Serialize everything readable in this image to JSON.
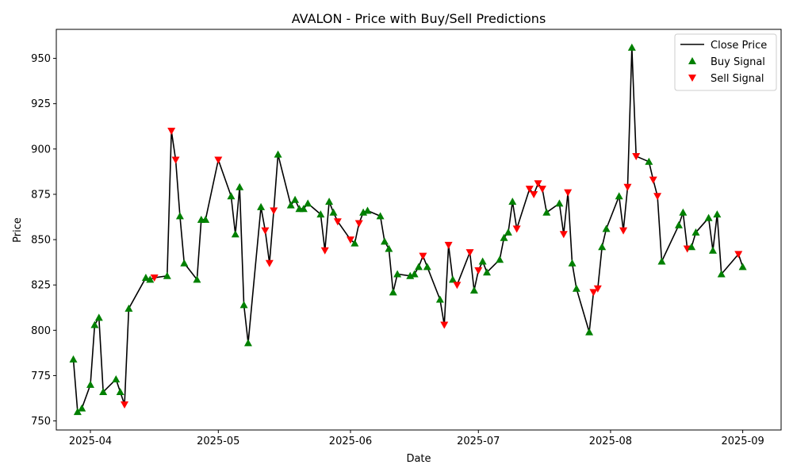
{
  "chart_data": {
    "type": "line",
    "title": "AVALON - Price with Buy/Sell Predictions",
    "xlabel": "Date",
    "ylabel": "Price",
    "xlim": [
      "2025-03-24",
      "2025-09-10"
    ],
    "ylim": [
      745,
      966
    ],
    "x_ticks": [
      "2025-04-01",
      "2025-05-01",
      "2025-06-01",
      "2025-07-01",
      "2025-08-01",
      "2025-09-01"
    ],
    "x_tick_labels": [
      "2025-04",
      "2025-05",
      "2025-06",
      "2025-07",
      "2025-08",
      "2025-09"
    ],
    "y_ticks": [
      750,
      775,
      800,
      825,
      850,
      875,
      900,
      925,
      950
    ],
    "grid": false,
    "legend": {
      "position": "top-right",
      "entries": [
        "Close Price",
        "Buy Signal",
        "Sell Signal"
      ]
    },
    "colors": {
      "line": "#000000",
      "buy": "#008000",
      "sell": "#ff0000"
    },
    "series": [
      {
        "name": "Close Price",
        "points": [
          {
            "x": "2025-03-28",
            "y": 784,
            "signal": "buy"
          },
          {
            "x": "2025-03-29",
            "y": 755,
            "signal": "buy"
          },
          {
            "x": "2025-03-30",
            "y": 757,
            "signal": "buy"
          },
          {
            "x": "2025-04-01",
            "y": 770,
            "signal": "buy"
          },
          {
            "x": "2025-04-02",
            "y": 803,
            "signal": "buy"
          },
          {
            "x": "2025-04-03",
            "y": 807,
            "signal": "buy"
          },
          {
            "x": "2025-04-04",
            "y": 766,
            "signal": "buy"
          },
          {
            "x": "2025-04-07",
            "y": 773,
            "signal": "buy"
          },
          {
            "x": "2025-04-08",
            "y": 766,
            "signal": "buy"
          },
          {
            "x": "2025-04-09",
            "y": 759,
            "signal": "sell"
          },
          {
            "x": "2025-04-10",
            "y": 812,
            "signal": "buy"
          },
          {
            "x": "2025-04-14",
            "y": 829,
            "signal": "buy"
          },
          {
            "x": "2025-04-15",
            "y": 828,
            "signal": "buy"
          },
          {
            "x": "2025-04-16",
            "y": 829,
            "signal": "sell"
          },
          {
            "x": "2025-04-19",
            "y": 830,
            "signal": "buy"
          },
          {
            "x": "2025-04-20",
            "y": 910,
            "signal": "sell"
          },
          {
            "x": "2025-04-21",
            "y": 894,
            "signal": "sell"
          },
          {
            "x": "2025-04-22",
            "y": 863,
            "signal": "buy"
          },
          {
            "x": "2025-04-23",
            "y": 837,
            "signal": "buy"
          },
          {
            "x": "2025-04-26",
            "y": 828,
            "signal": "buy"
          },
          {
            "x": "2025-04-27",
            "y": 861,
            "signal": "buy"
          },
          {
            "x": "2025-04-28",
            "y": 861,
            "signal": "buy"
          },
          {
            "x": "2025-05-01",
            "y": 894,
            "signal": "sell"
          },
          {
            "x": "2025-05-04",
            "y": 874,
            "signal": "buy"
          },
          {
            "x": "2025-05-05",
            "y": 853,
            "signal": "buy"
          },
          {
            "x": "2025-05-06",
            "y": 879,
            "signal": "buy"
          },
          {
            "x": "2025-05-07",
            "y": 814,
            "signal": "buy"
          },
          {
            "x": "2025-05-08",
            "y": 793,
            "signal": "buy"
          },
          {
            "x": "2025-05-11",
            "y": 868,
            "signal": "buy"
          },
          {
            "x": "2025-05-12",
            "y": 855,
            "signal": "sell"
          },
          {
            "x": "2025-05-13",
            "y": 837,
            "signal": "sell"
          },
          {
            "x": "2025-05-14",
            "y": 866,
            "signal": "sell"
          },
          {
            "x": "2025-05-15",
            "y": 897,
            "signal": "buy"
          },
          {
            "x": "2025-05-18",
            "y": 869,
            "signal": "buy"
          },
          {
            "x": "2025-05-19",
            "y": 872,
            "signal": "buy"
          },
          {
            "x": "2025-05-20",
            "y": 867,
            "signal": "buy"
          },
          {
            "x": "2025-05-21",
            "y": 867,
            "signal": "buy"
          },
          {
            "x": "2025-05-22",
            "y": 870,
            "signal": "buy"
          },
          {
            "x": "2025-05-25",
            "y": 864,
            "signal": "buy"
          },
          {
            "x": "2025-05-26",
            "y": 844,
            "signal": "sell"
          },
          {
            "x": "2025-05-27",
            "y": 871,
            "signal": "buy"
          },
          {
            "x": "2025-05-28",
            "y": 865,
            "signal": "buy"
          },
          {
            "x": "2025-05-29",
            "y": 860,
            "signal": "sell"
          },
          {
            "x": "2025-06-01",
            "y": 850,
            "signal": "sell"
          },
          {
            "x": "2025-06-02",
            "y": 848,
            "signal": "buy"
          },
          {
            "x": "2025-06-03",
            "y": 859,
            "signal": "sell"
          },
          {
            "x": "2025-06-04",
            "y": 865,
            "signal": "buy"
          },
          {
            "x": "2025-06-05",
            "y": 866,
            "signal": "buy"
          },
          {
            "x": "2025-06-08",
            "y": 863,
            "signal": "buy"
          },
          {
            "x": "2025-06-09",
            "y": 849,
            "signal": "buy"
          },
          {
            "x": "2025-06-10",
            "y": 845,
            "signal": "buy"
          },
          {
            "x": "2025-06-11",
            "y": 821,
            "signal": "buy"
          },
          {
            "x": "2025-06-12",
            "y": 831,
            "signal": "buy"
          },
          {
            "x": "2025-06-15",
            "y": 830,
            "signal": "buy"
          },
          {
            "x": "2025-06-16",
            "y": 831,
            "signal": "buy"
          },
          {
            "x": "2025-06-17",
            "y": 835,
            "signal": "buy"
          },
          {
            "x": "2025-06-18",
            "y": 841,
            "signal": "sell"
          },
          {
            "x": "2025-06-19",
            "y": 835,
            "signal": "buy"
          },
          {
            "x": "2025-06-22",
            "y": 817,
            "signal": "buy"
          },
          {
            "x": "2025-06-23",
            "y": 803,
            "signal": "sell"
          },
          {
            "x": "2025-06-24",
            "y": 847,
            "signal": "sell"
          },
          {
            "x": "2025-06-25",
            "y": 828,
            "signal": "buy"
          },
          {
            "x": "2025-06-26",
            "y": 825,
            "signal": "sell"
          },
          {
            "x": "2025-06-29",
            "y": 843,
            "signal": "sell"
          },
          {
            "x": "2025-06-30",
            "y": 822,
            "signal": "buy"
          },
          {
            "x": "2025-07-01",
            "y": 833,
            "signal": "sell"
          },
          {
            "x": "2025-07-02",
            "y": 838,
            "signal": "buy"
          },
          {
            "x": "2025-07-03",
            "y": 832,
            "signal": "buy"
          },
          {
            "x": "2025-07-06",
            "y": 839,
            "signal": "buy"
          },
          {
            "x": "2025-07-07",
            "y": 851,
            "signal": "buy"
          },
          {
            "x": "2025-07-08",
            "y": 854,
            "signal": "buy"
          },
          {
            "x": "2025-07-09",
            "y": 871,
            "signal": "buy"
          },
          {
            "x": "2025-07-10",
            "y": 856,
            "signal": "sell"
          },
          {
            "x": "2025-07-13",
            "y": 878,
            "signal": "sell"
          },
          {
            "x": "2025-07-14",
            "y": 875,
            "signal": "sell"
          },
          {
            "x": "2025-07-15",
            "y": 881,
            "signal": "sell"
          },
          {
            "x": "2025-07-16",
            "y": 878,
            "signal": "sell"
          },
          {
            "x": "2025-07-17",
            "y": 865,
            "signal": "buy"
          },
          {
            "x": "2025-07-20",
            "y": 870,
            "signal": "buy"
          },
          {
            "x": "2025-07-21",
            "y": 853,
            "signal": "sell"
          },
          {
            "x": "2025-07-22",
            "y": 876,
            "signal": "sell"
          },
          {
            "x": "2025-07-23",
            "y": 837,
            "signal": "buy"
          },
          {
            "x": "2025-07-24",
            "y": 823,
            "signal": "buy"
          },
          {
            "x": "2025-07-27",
            "y": 799,
            "signal": "buy"
          },
          {
            "x": "2025-07-28",
            "y": 821,
            "signal": "sell"
          },
          {
            "x": "2025-07-29",
            "y": 823,
            "signal": "sell"
          },
          {
            "x": "2025-07-30",
            "y": 846,
            "signal": "buy"
          },
          {
            "x": "2025-07-31",
            "y": 856,
            "signal": "buy"
          },
          {
            "x": "2025-08-03",
            "y": 874,
            "signal": "buy"
          },
          {
            "x": "2025-08-04",
            "y": 855,
            "signal": "sell"
          },
          {
            "x": "2025-08-05",
            "y": 879,
            "signal": "sell"
          },
          {
            "x": "2025-08-06",
            "y": 956,
            "signal": "buy"
          },
          {
            "x": "2025-08-07",
            "y": 896,
            "signal": "sell"
          },
          {
            "x": "2025-08-10",
            "y": 893,
            "signal": "buy"
          },
          {
            "x": "2025-08-11",
            "y": 883,
            "signal": "sell"
          },
          {
            "x": "2025-08-12",
            "y": 874,
            "signal": "sell"
          },
          {
            "x": "2025-08-13",
            "y": 838,
            "signal": "buy"
          },
          {
            "x": "2025-08-17",
            "y": 858,
            "signal": "buy"
          },
          {
            "x": "2025-08-18",
            "y": 865,
            "signal": "buy"
          },
          {
            "x": "2025-08-19",
            "y": 845,
            "signal": "sell"
          },
          {
            "x": "2025-08-20",
            "y": 846,
            "signal": "buy"
          },
          {
            "x": "2025-08-21",
            "y": 854,
            "signal": "buy"
          },
          {
            "x": "2025-08-24",
            "y": 862,
            "signal": "buy"
          },
          {
            "x": "2025-08-25",
            "y": 844,
            "signal": "buy"
          },
          {
            "x": "2025-08-26",
            "y": 864,
            "signal": "buy"
          },
          {
            "x": "2025-08-27",
            "y": 831,
            "signal": "buy"
          },
          {
            "x": "2025-08-31",
            "y": 842,
            "signal": "sell"
          },
          {
            "x": "2025-09-01",
            "y": 835,
            "signal": "buy"
          }
        ]
      }
    ]
  }
}
